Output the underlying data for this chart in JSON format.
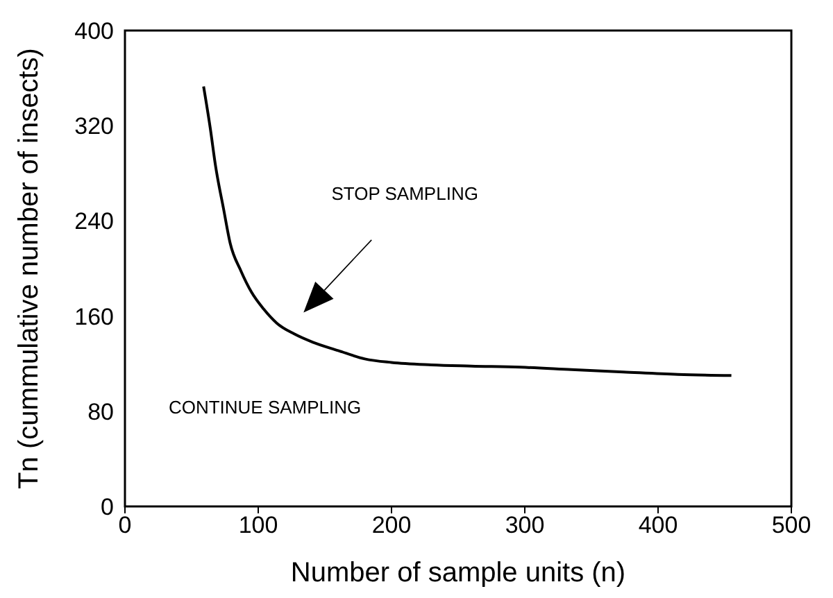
{
  "chart_data": {
    "type": "line",
    "xlabel": "Number of sample units (n)",
    "ylabel": "Tn (cummulative number of insects)",
    "x": [
      59,
      64,
      68,
      74,
      79,
      87,
      95,
      104,
      114,
      127,
      141,
      160,
      180,
      200,
      230,
      260,
      297,
      335,
      374,
      415,
      455
    ],
    "series": [
      {
        "color": "#000000",
        "values": [
          353,
          318,
          286,
          250,
          221,
          198,
          180,
          166,
          154,
          145,
          138,
          131,
          124,
          121,
          119,
          118,
          117,
          115,
          113,
          111,
          110
        ]
      }
    ],
    "xlim": [
      0,
      500
    ],
    "xticks": [
      0,
      100,
      200,
      300,
      400,
      500
    ],
    "ylim": [
      0,
      400
    ],
    "yticks": [
      0,
      80,
      160,
      240,
      320,
      400
    ],
    "grid": false,
    "legend": false,
    "marker": "none",
    "line_style": "solid",
    "annotations": [
      "STOP SAMPLING",
      "CONTINUE SAMPLING"
    ]
  }
}
